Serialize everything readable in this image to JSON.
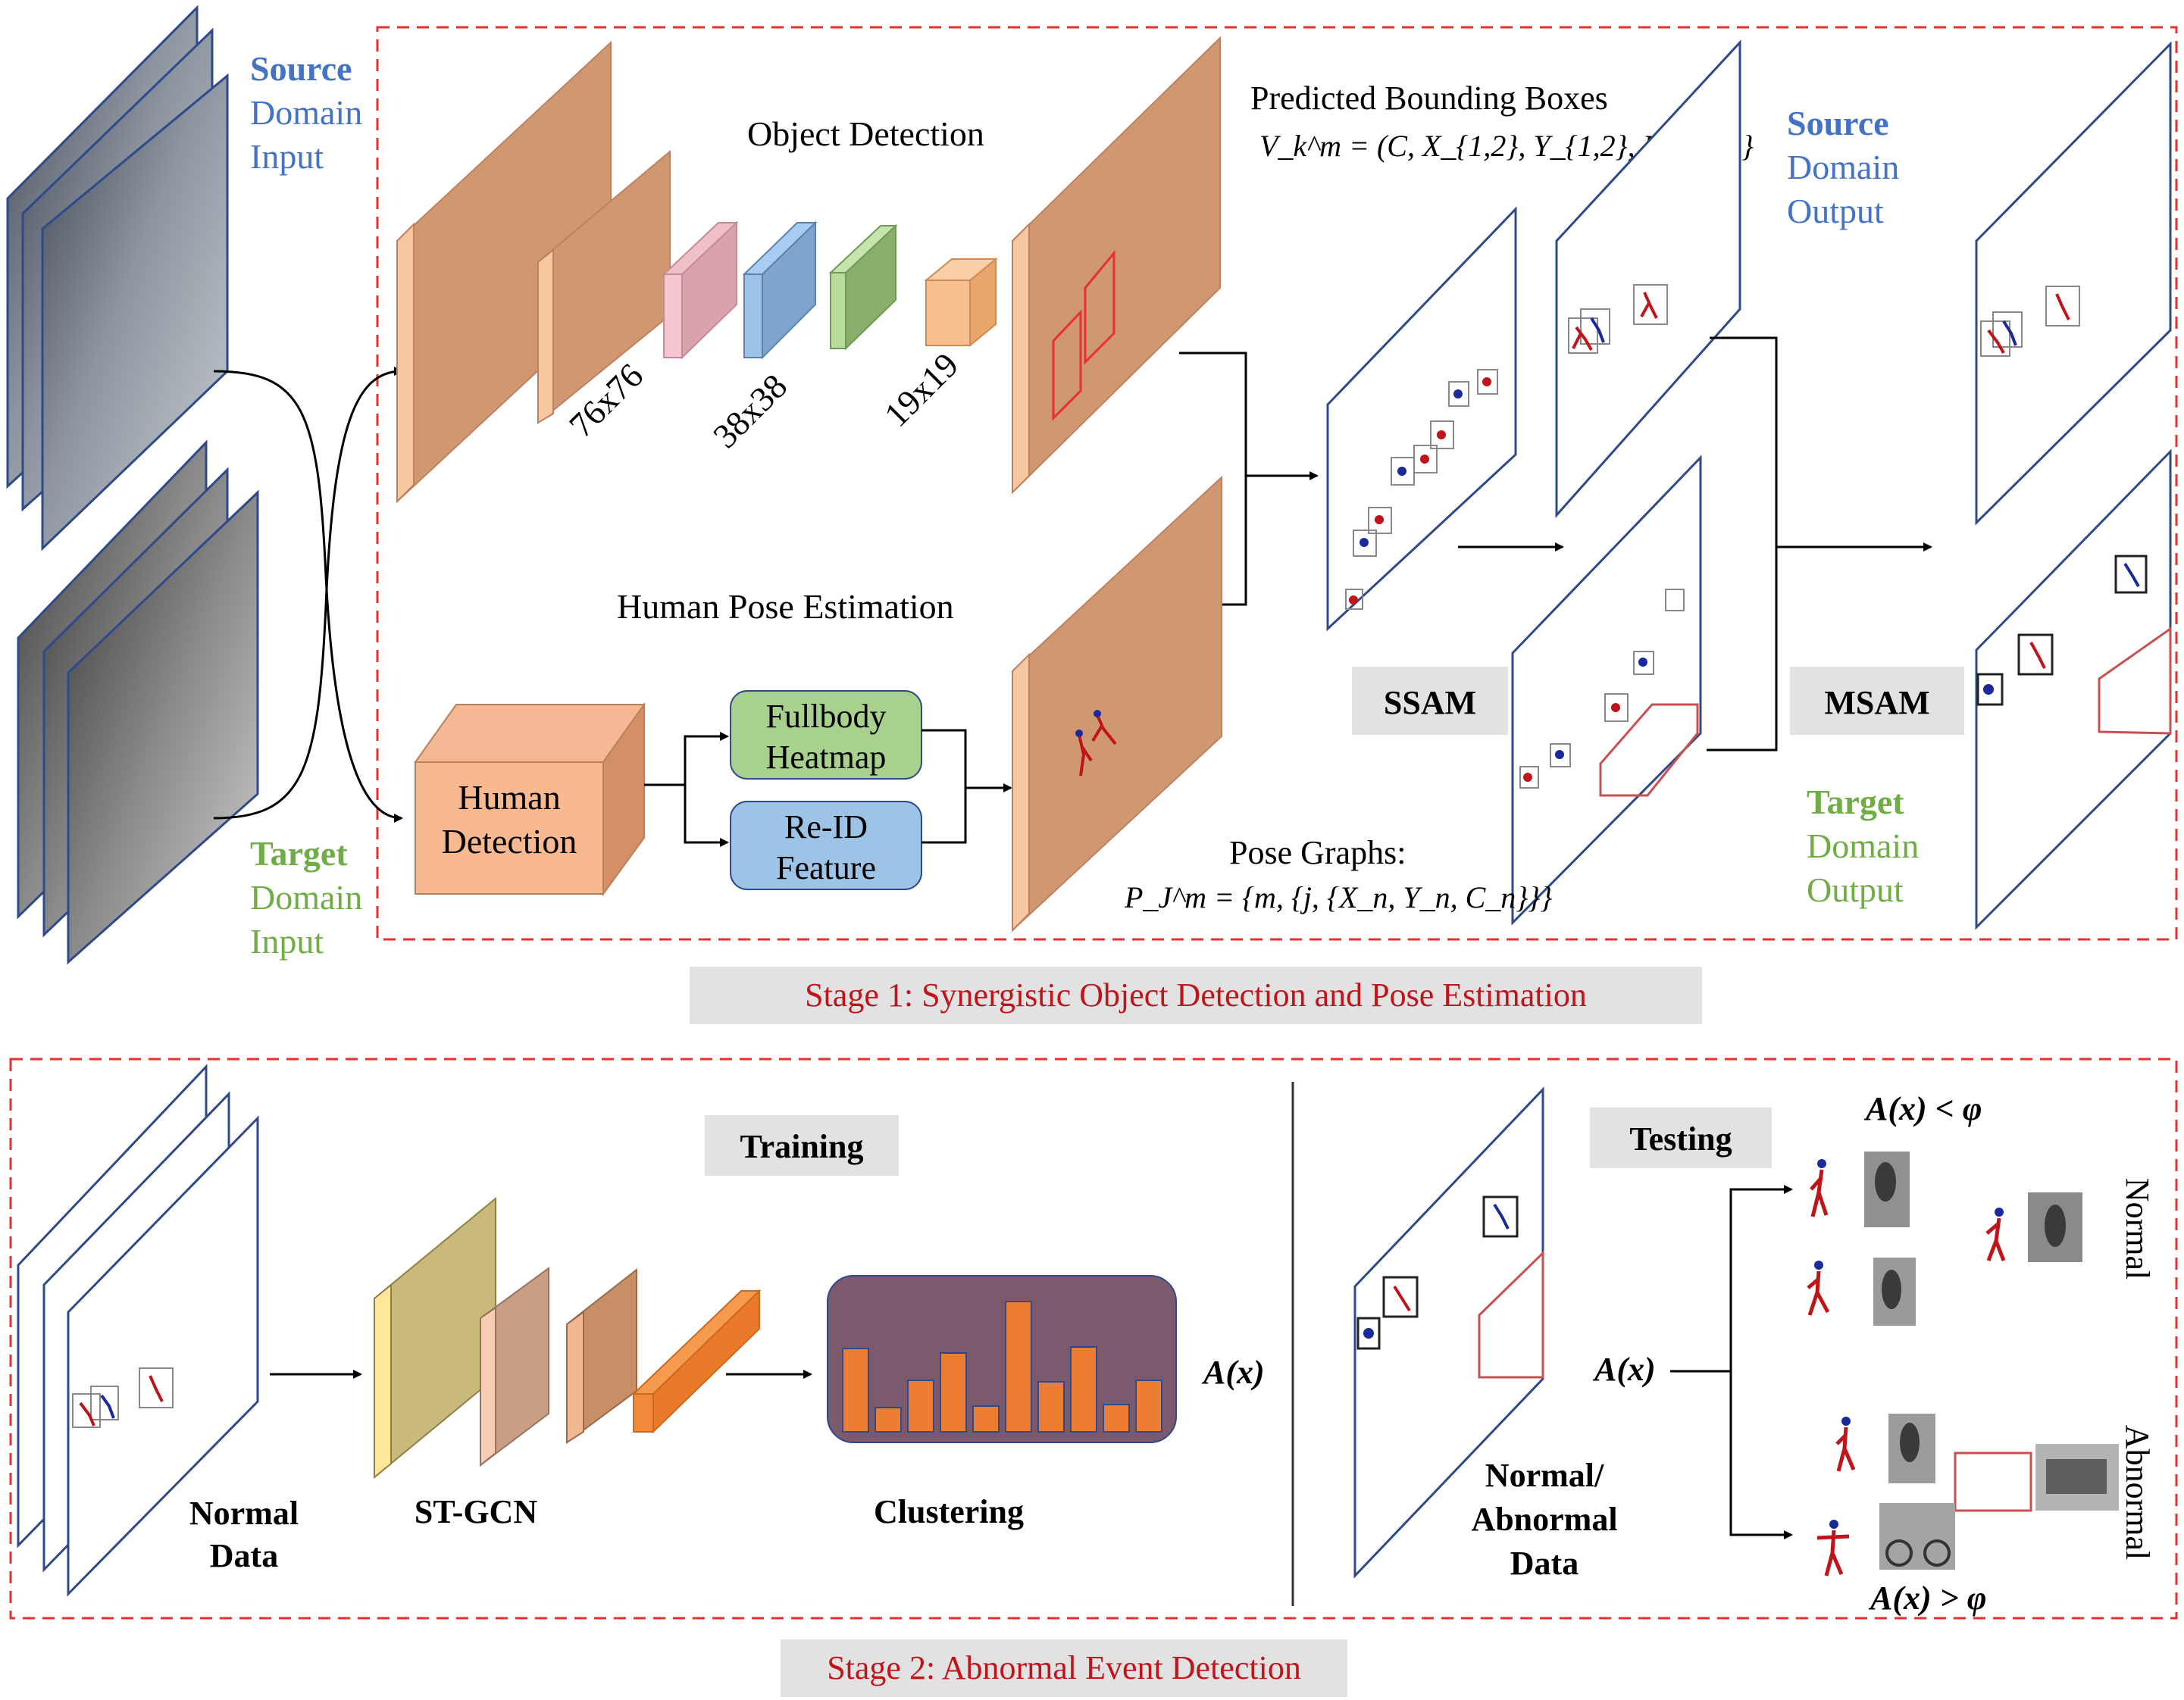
{
  "stage1": {
    "source_input": [
      "Source",
      "Domain",
      "Input"
    ],
    "target_input": [
      "Target",
      "Domain",
      "Input"
    ],
    "object_detection": "Object Detection",
    "res_76": "76x76",
    "res_38": "38x38",
    "res_19": "19x19",
    "pred_boxes_title": "Predicted Bounding Boxes",
    "pred_boxes_formula": "V_k^m = (C, X_{1,2}, Y_{1,2}, F)_{k,m}",
    "human_pose": "Human Pose Estimation",
    "human_detection": [
      "Human",
      "Detection"
    ],
    "fullbody": [
      "Fullbody",
      "Heatmap"
    ],
    "reid": [
      "Re-ID",
      "Feature"
    ],
    "pose_graphs_title": "Pose Graphs:",
    "pose_graphs_formula": "P_J^m = {m, {j, {X_n, Y_n, C_n}}}",
    "ssam": "SSAM",
    "msam": "MSAM",
    "source_output": [
      "Source",
      "Domain",
      "Output"
    ],
    "target_output": [
      "Target",
      "Domain",
      "Output"
    ],
    "caption": "Stage 1: Synergistic Object Detection and Pose Estimation"
  },
  "stage2": {
    "training": "Training",
    "normal_data": [
      "Normal",
      "Data"
    ],
    "stgcn": "ST-GCN",
    "clustering": "Clustering",
    "ax": "A(x)",
    "testing": "Testing",
    "ax_less": "A(x) < φ",
    "ax_greater": "A(x) > φ",
    "normal_abnormal": [
      "Normal/",
      "Abnormal",
      "Data"
    ],
    "ax_test": "A(x)",
    "normal_label": "Normal",
    "abnormal_label": "Abnormal",
    "caption": "Stage 2: Abnormal Event Detection"
  },
  "colors": {
    "red_dash": "#e8302f",
    "caption_red": "#c0141b",
    "blue_text": "#4472c4",
    "green_text": "#70ad47",
    "brown_face": "#d09870",
    "brown_side": "#f7c8a0",
    "caption_bg": "#e2e2e2",
    "cluster_bg": "#7b5a6e",
    "bar_orange": "#ed7d31"
  }
}
